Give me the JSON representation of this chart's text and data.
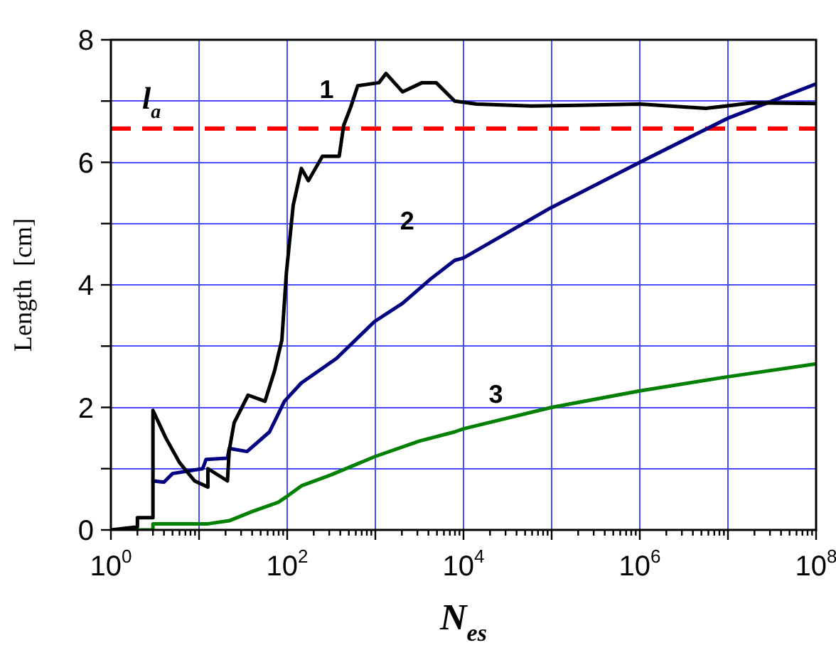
{
  "chart_data": {
    "type": "line",
    "xlabel": "N$_{es}$",
    "ylabel": "Length  [cm]",
    "log": "x",
    "xlim": [
      1,
      100000000
    ],
    "xticks": [
      {
        "value": 1,
        "label": "10$^{0}$"
      },
      {
        "value": 10,
        "label": null
      },
      {
        "value": 100,
        "label": "10$^{2}$"
      },
      {
        "value": 1000,
        "label": null
      },
      {
        "value": 10000,
        "label": "10$^{4}$"
      },
      {
        "value": 100000,
        "label": null
      },
      {
        "value": 1000000,
        "label": "10$^{6}$"
      },
      {
        "value": 10000000,
        "label": null
      },
      {
        "value": 100000000,
        "label": "10$^{8}$"
      }
    ],
    "ylim": [
      0,
      8
    ],
    "yticks": [
      0,
      {
        "value": 1,
        "label": null
      },
      2,
      {
        "value": 3,
        "label": null
      },
      4,
      {
        "value": 5,
        "label": null
      },
      6,
      {
        "value": 7,
        "label": null
      },
      8
    ],
    "grid": true,
    "legend": false,
    "marker": "none",
    "line_style": "solid",
    "series": [
      {
        "name": "1",
        "color": "#000000",
        "x": [
          1,
          2,
          2,
          3,
          3,
          4.2,
          6,
          8.9,
          12.6,
          12.6,
          21,
          22,
          25,
          36,
          56,
          72,
          87,
          98,
          117,
          145,
          174,
          251,
          389,
          437,
          525,
          631,
          1100,
          1320,
          2040,
          3390,
          4900,
          7940,
          14100,
          58900,
          200000,
          1000000,
          5600000,
          19000000,
          100000000
        ],
        "values": [
          0,
          0.05,
          0.2,
          0.2,
          1.95,
          1.5,
          1.1,
          0.8,
          0.7,
          1.0,
          0.8,
          1.3,
          1.75,
          2.2,
          2.1,
          2.6,
          3.1,
          4.2,
          5.3,
          5.9,
          5.7,
          6.1,
          6.1,
          6.6,
          6.9,
          7.25,
          7.3,
          7.45,
          7.15,
          7.3,
          7.3,
          7.0,
          6.95,
          6.92,
          6.93,
          6.95,
          6.88,
          6.97,
          6.96
        ]
      },
      {
        "name": "2",
        "color": "#000080",
        "x": [
          3,
          4,
          5,
          11,
          12,
          21,
          22,
          35,
          63,
          93,
          145,
          363,
          977,
          2040,
          4270,
          7940,
          10000,
          95500,
          1000000,
          10000000,
          100000000
        ],
        "values": [
          0.8,
          0.78,
          0.92,
          1.0,
          1.15,
          1.17,
          1.33,
          1.28,
          1.6,
          2.1,
          2.4,
          2.8,
          3.4,
          3.7,
          4.1,
          4.4,
          4.44,
          5.25,
          6.0,
          6.72,
          7.28
        ]
      },
      {
        "name": "3",
        "color": "#008000",
        "x": [
          1,
          3,
          3,
          12.6,
          22,
          40,
          79,
          100,
          145,
          316,
          1000,
          3160,
          7940,
          10000,
          100000,
          1000000,
          10000000,
          100000000
        ],
        "values": [
          0,
          0,
          0.1,
          0.1,
          0.15,
          0.3,
          0.45,
          0.55,
          0.72,
          0.9,
          1.2,
          1.45,
          1.6,
          1.65,
          2.0,
          2.27,
          2.5,
          2.71
        ]
      }
    ],
    "ref_lines": [
      {
        "axis": "y",
        "value": 6.55,
        "label": "l$_{a}$",
        "color": "#ff0000",
        "line_style": "dashed"
      }
    ]
  }
}
